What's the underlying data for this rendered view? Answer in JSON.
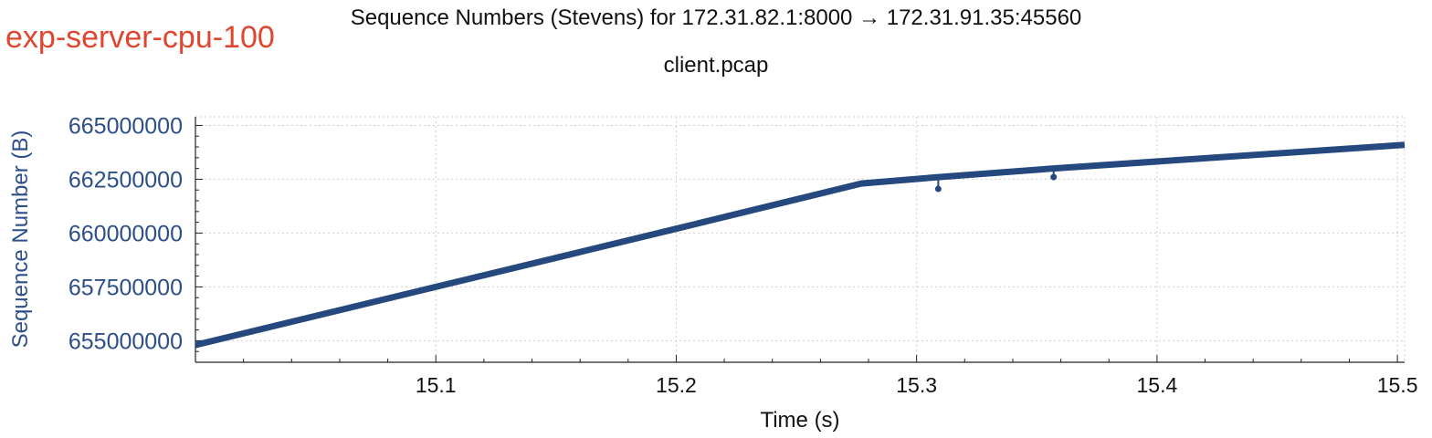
{
  "experiment_label": "exp-server-cpu-100",
  "chart_data": {
    "type": "line",
    "title": "Sequence Numbers (Stevens) for 172.31.82.1:8000 → 172.31.91.35:45560",
    "subtitle": "client.pcap",
    "xlabel": "Time (s)",
    "ylabel": "Sequence Number (B)",
    "xlim": [
      15.0,
      15.503
    ],
    "ylim": [
      654000000,
      665400000
    ],
    "x_ticks": [
      15.1,
      15.2,
      15.3,
      15.4,
      15.5
    ],
    "x_tick_labels": [
      "15.1",
      "15.2",
      "15.3",
      "15.4",
      "15.5"
    ],
    "y_ticks": [
      655000000,
      657500000,
      660000000,
      662500000,
      665000000
    ],
    "y_tick_labels": [
      "655000000",
      "657500000",
      "660000000",
      "662500000",
      "665000000"
    ],
    "grid": true,
    "colors": {
      "series": "#25487f",
      "ytick_text": "#2c4f8a",
      "grid": "#cfcfcf",
      "label": "#e2452f"
    },
    "series": [
      {
        "x": [
          15.0,
          15.1,
          15.2,
          15.277,
          15.309,
          15.357,
          15.503
        ],
        "y": [
          654800000,
          657500000,
          660200000,
          662300000,
          662600000,
          663000000,
          664100000
        ]
      }
    ],
    "markers": [
      {
        "x": 15.309,
        "y": 662050000,
        "from": 662600000
      },
      {
        "x": 15.357,
        "y": 662600000,
        "from": 663000000
      }
    ]
  }
}
